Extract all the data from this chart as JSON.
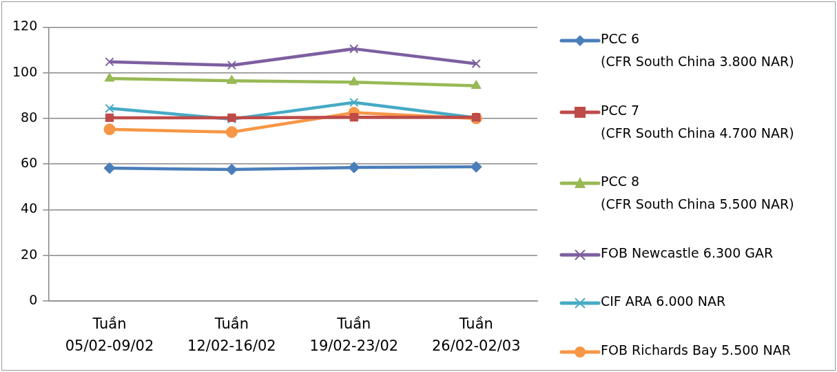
{
  "chart_data": {
    "type": "line",
    "categories": [
      "Tuần\n05/02-09/02",
      "Tuần\n12/02-16/02",
      "Tuần\n19/02-23/02",
      "Tuần\n26/02-02/03"
    ],
    "series": [
      {
        "name": "PCC 6\n(CFR South China 3.800 NAR)",
        "color": "#4a7ebb",
        "marker": "diamond",
        "values": [
          58.2,
          57.6,
          58.5,
          58.8
        ]
      },
      {
        "name": "PCC 7\n(CFR South China 4.700 NAR)",
        "color": "#be4b48",
        "marker": "square",
        "values": [
          80.3,
          80.3,
          80.5,
          80.5
        ]
      },
      {
        "name": "PCC 8\n(CFR South China 5.500 NAR)",
        "color": "#98b954",
        "marker": "triangle",
        "values": [
          97.5,
          96.5,
          95.9,
          94.3
        ]
      },
      {
        "name": "FOB Newcastle 6.300 GAR",
        "color": "#7d5fa0",
        "marker": "cross",
        "values": [
          104.8,
          103.3,
          110.5,
          104.0
        ]
      },
      {
        "name": "CIF ARA 6.000 NAR",
        "color": "#46aac5",
        "marker": "cross",
        "values": [
          84.4,
          79.7,
          87.0,
          80.3
        ]
      },
      {
        "name": "FOB Richards Bay 5.500 NAR",
        "color": "#f79646",
        "marker": "circle",
        "values": [
          75.2,
          74.0,
          82.5,
          80.0
        ]
      }
    ],
    "ylim": [
      0,
      120
    ],
    "yticks": [
      0,
      20,
      40,
      60,
      80,
      100,
      120
    ],
    "grid": "y",
    "legend": "right",
    "line_style": "solid"
  }
}
